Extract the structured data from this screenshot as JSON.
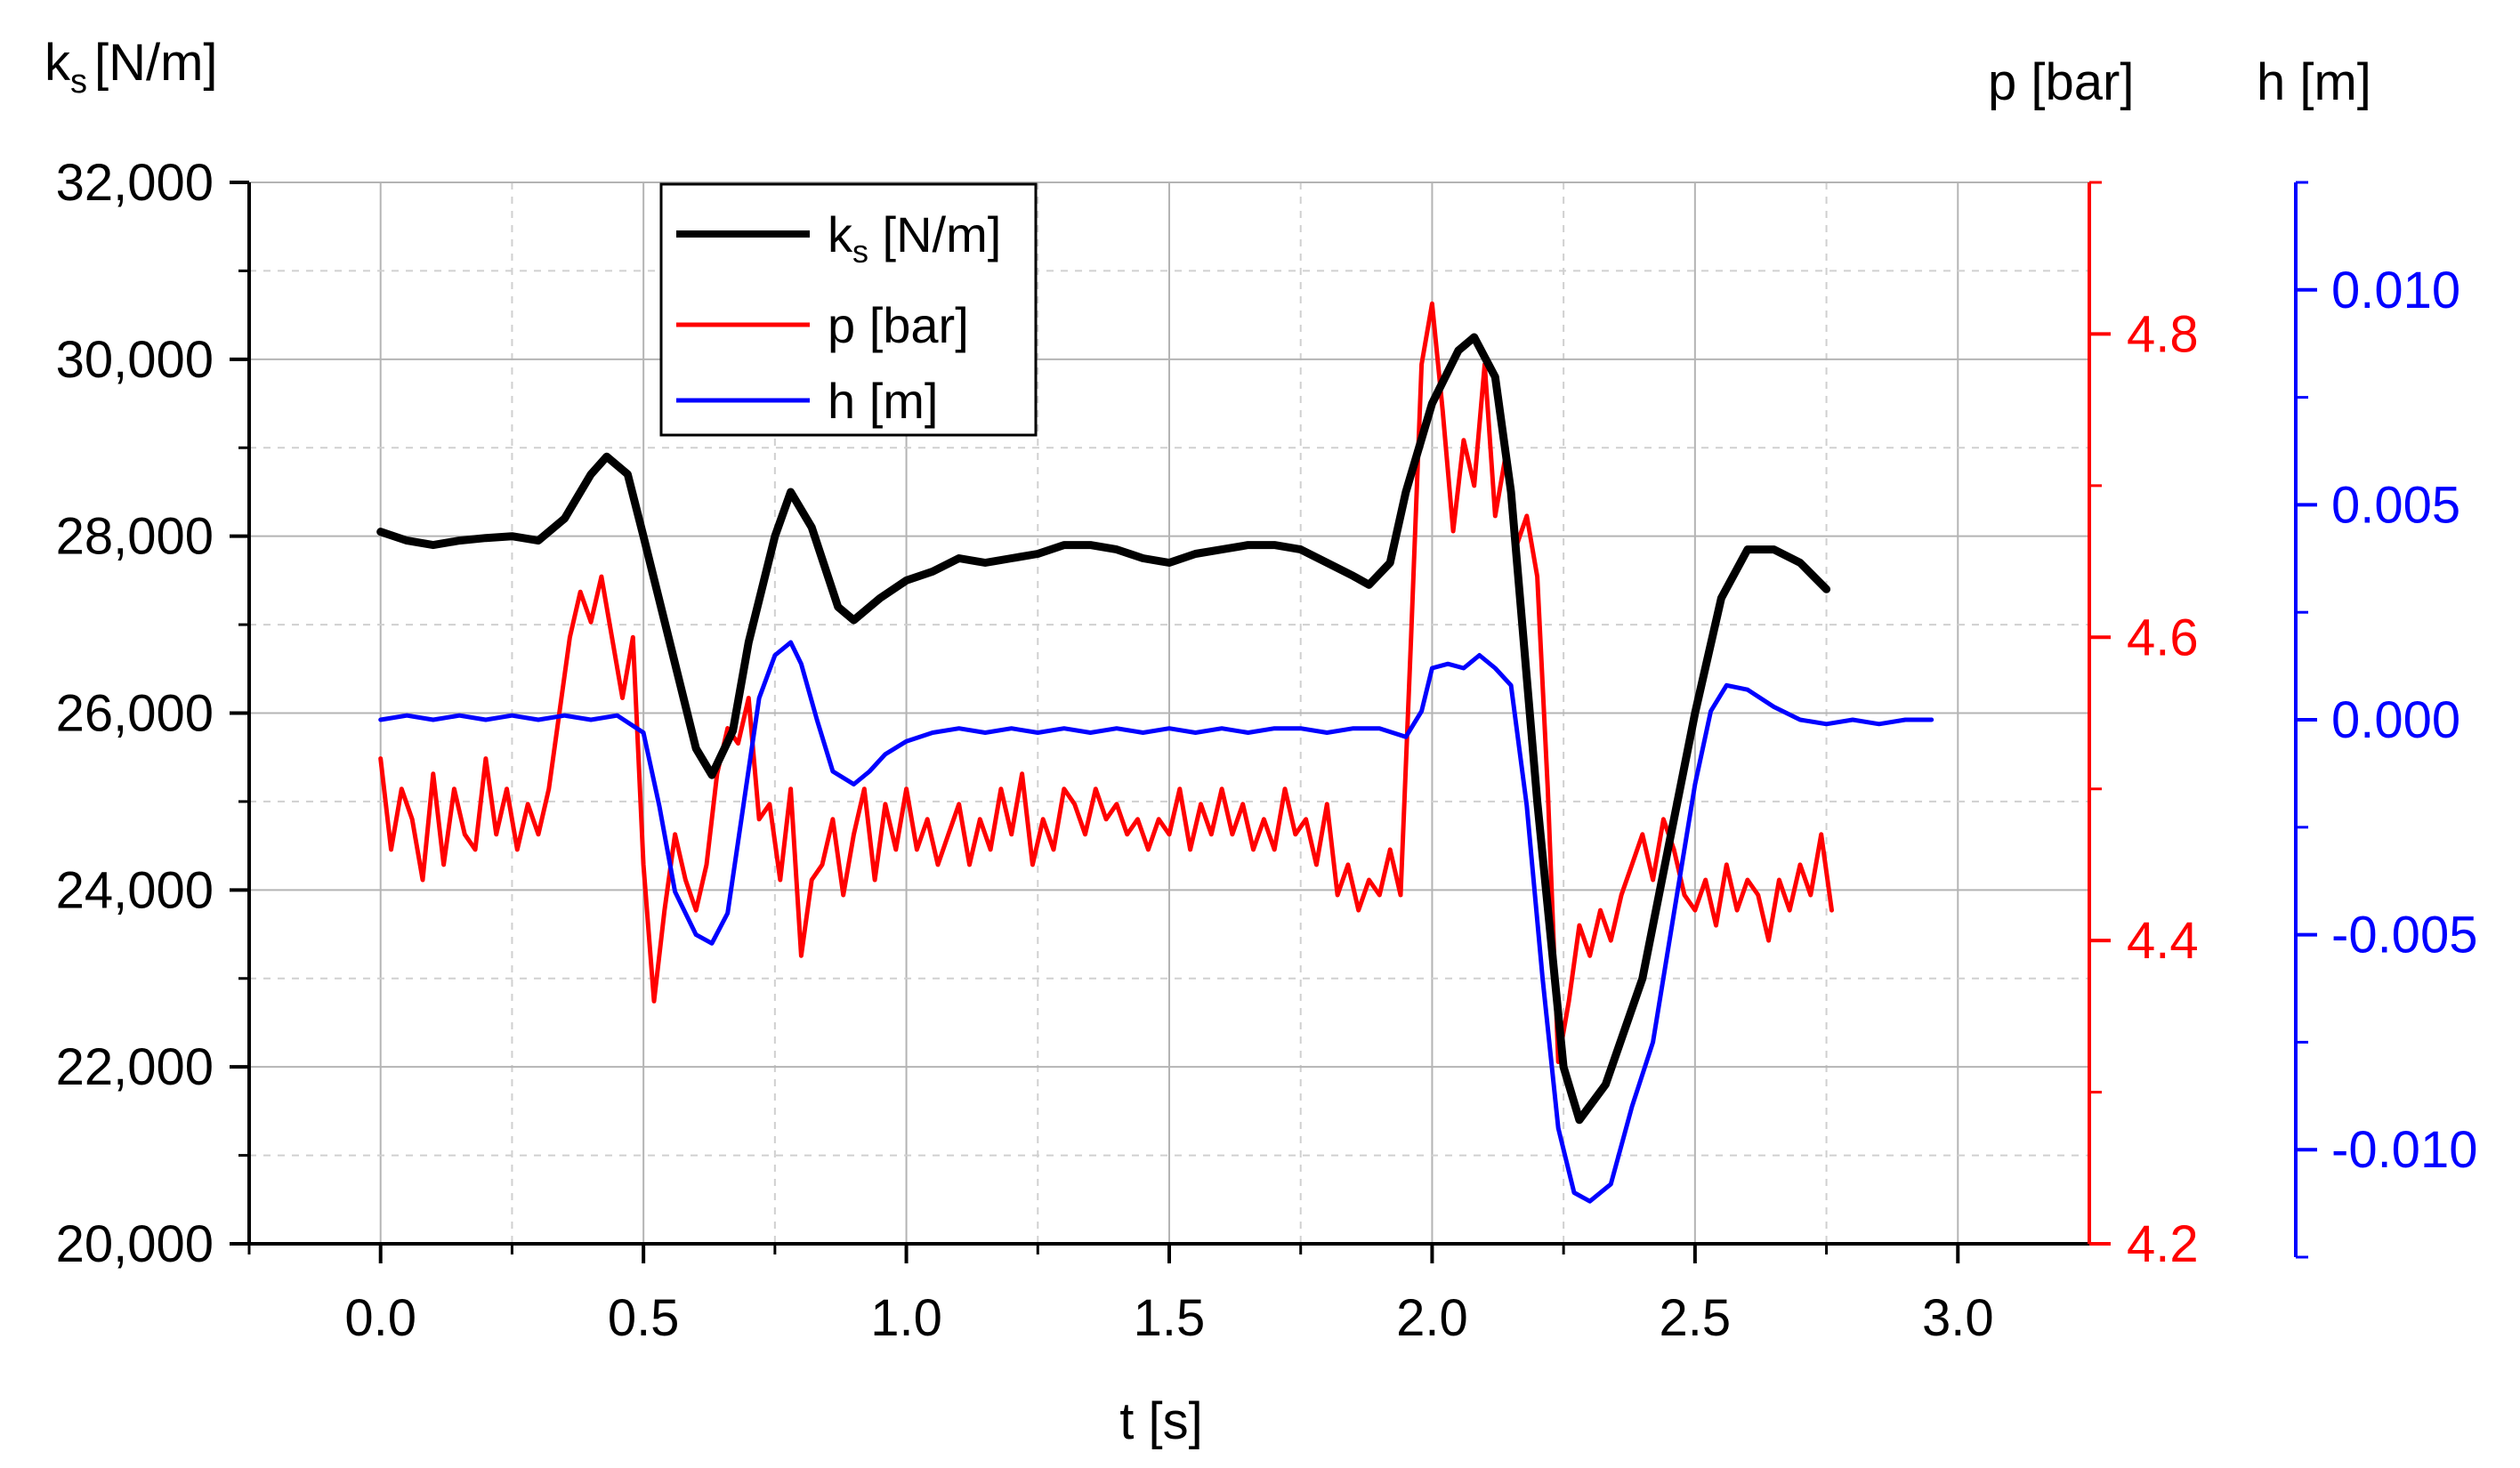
{
  "chart_data": {
    "type": "line",
    "title": "",
    "x_axis": {
      "label": "t [s]",
      "range": [
        -0.25,
        3.25
      ],
      "ticks": [
        0.0,
        0.5,
        1.0,
        1.5,
        2.0,
        2.5,
        3.0
      ],
      "tick_labels": [
        "0.0",
        "0.5",
        "1.0",
        "1.5",
        "2.0",
        "2.5",
        "3.0"
      ],
      "grid": true
    },
    "y_axes": {
      "left": {
        "label_main": "k",
        "label_sub": "s",
        "label_unit": "[N/m]",
        "range": [
          20000,
          32000
        ],
        "ticks": [
          20000,
          22000,
          24000,
          26000,
          28000,
          30000,
          32000
        ],
        "tick_labels": [
          "20,000",
          "22,000",
          "24,000",
          "26,000",
          "28,000",
          "30,000",
          "32,000"
        ],
        "color": "#000000"
      },
      "right_p": {
        "label": "p [bar]",
        "range": [
          4.2,
          4.9
        ],
        "ticks": [
          4.2,
          4.4,
          4.6,
          4.8
        ],
        "tick_labels": [
          "4.2",
          "4.4",
          "4.6",
          "4.8"
        ],
        "color": "#ff0000"
      },
      "right_h": {
        "label": "h [m]",
        "range": [
          -0.0125,
          0.0125
        ],
        "ticks": [
          -0.01,
          -0.005,
          0.0,
          0.005,
          0.01
        ],
        "tick_labels": [
          "-0.010",
          "-0.005",
          "0.000",
          "0.005",
          "0.010"
        ],
        "color": "#0000ff"
      }
    },
    "legend": {
      "placement": "top-left",
      "entries": [
        {
          "main": "k",
          "sub": "s",
          "suffix": " [N/m]",
          "color": "#000000"
        },
        {
          "main": "p [bar]",
          "sub": "",
          "suffix": "",
          "color": "#ff0000"
        },
        {
          "main": "h [m]",
          "sub": "",
          "suffix": "",
          "color": "#0000ff"
        }
      ]
    },
    "series": [
      {
        "name": "ks [N/m]",
        "axis": "left",
        "color": "#000000",
        "x": [
          0.0,
          0.05,
          0.1,
          0.15,
          0.2,
          0.25,
          0.3,
          0.35,
          0.4,
          0.43,
          0.47,
          0.5,
          0.55,
          0.6,
          0.63,
          0.67,
          0.7,
          0.75,
          0.78,
          0.82,
          0.87,
          0.9,
          0.95,
          1.0,
          1.05,
          1.1,
          1.15,
          1.2,
          1.25,
          1.3,
          1.35,
          1.4,
          1.45,
          1.5,
          1.55,
          1.6,
          1.65,
          1.7,
          1.75,
          1.8,
          1.85,
          1.88,
          1.92,
          1.95,
          2.0,
          2.05,
          2.08,
          2.12,
          2.15,
          2.2,
          2.25,
          2.28,
          2.33,
          2.4,
          2.45,
          2.5,
          2.55,
          2.6,
          2.65,
          2.7,
          2.75
        ],
        "values": [
          28050,
          27950,
          27900,
          27950,
          27980,
          28000,
          27950,
          28200,
          28700,
          28900,
          28700,
          28000,
          26800,
          25600,
          25300,
          25800,
          26800,
          28000,
          28500,
          28100,
          27200,
          27050,
          27300,
          27500,
          27600,
          27750,
          27700,
          27750,
          27800,
          27900,
          27900,
          27850,
          27750,
          27700,
          27800,
          27850,
          27900,
          27900,
          27850,
          27700,
          27550,
          27450,
          27700,
          28500,
          29500,
          30100,
          30250,
          29800,
          28500,
          25000,
          22000,
          21400,
          21800,
          23000,
          24500,
          26000,
          27300,
          27850,
          27850,
          27700,
          27400
        ]
      },
      {
        "name": "p [bar]",
        "axis": "right_p",
        "color": "#ff0000",
        "x": [
          0.0,
          0.02,
          0.04,
          0.06,
          0.08,
          0.1,
          0.12,
          0.14,
          0.16,
          0.18,
          0.2,
          0.22,
          0.24,
          0.26,
          0.28,
          0.3,
          0.32,
          0.34,
          0.36,
          0.38,
          0.4,
          0.42,
          0.44,
          0.46,
          0.48,
          0.5,
          0.52,
          0.54,
          0.56,
          0.58,
          0.6,
          0.62,
          0.64,
          0.66,
          0.68,
          0.7,
          0.72,
          0.74,
          0.76,
          0.78,
          0.8,
          0.82,
          0.84,
          0.86,
          0.88,
          0.9,
          0.92,
          0.94,
          0.96,
          0.98,
          1.0,
          1.02,
          1.04,
          1.06,
          1.08,
          1.1,
          1.12,
          1.14,
          1.16,
          1.18,
          1.2,
          1.22,
          1.24,
          1.26,
          1.28,
          1.3,
          1.32,
          1.34,
          1.36,
          1.38,
          1.4,
          1.42,
          1.44,
          1.46,
          1.48,
          1.5,
          1.52,
          1.54,
          1.56,
          1.58,
          1.6,
          1.62,
          1.64,
          1.66,
          1.68,
          1.7,
          1.72,
          1.74,
          1.76,
          1.78,
          1.8,
          1.82,
          1.84,
          1.86,
          1.88,
          1.9,
          1.92,
          1.94,
          1.96,
          1.98,
          2.0,
          2.02,
          2.04,
          2.06,
          2.08,
          2.1,
          2.12,
          2.14,
          2.16,
          2.18,
          2.2,
          2.22,
          2.24,
          2.26,
          2.28,
          2.3,
          2.32,
          2.34,
          2.36,
          2.38,
          2.4,
          2.42,
          2.44,
          2.46,
          2.48,
          2.5,
          2.52,
          2.54,
          2.56,
          2.58,
          2.6,
          2.62,
          2.64,
          2.66,
          2.68,
          2.7,
          2.72,
          2.74,
          2.76
        ],
        "values": [
          4.52,
          4.46,
          4.5,
          4.48,
          4.44,
          4.51,
          4.45,
          4.5,
          4.47,
          4.46,
          4.52,
          4.47,
          4.5,
          4.46,
          4.49,
          4.47,
          4.5,
          4.55,
          4.6,
          4.63,
          4.61,
          4.64,
          4.6,
          4.56,
          4.6,
          4.45,
          4.36,
          4.42,
          4.47,
          4.44,
          4.42,
          4.45,
          4.51,
          4.54,
          4.53,
          4.56,
          4.48,
          4.49,
          4.44,
          4.5,
          4.39,
          4.44,
          4.45,
          4.48,
          4.43,
          4.47,
          4.5,
          4.44,
          4.49,
          4.46,
          4.5,
          4.46,
          4.48,
          4.45,
          4.47,
          4.49,
          4.45,
          4.48,
          4.46,
          4.5,
          4.47,
          4.51,
          4.45,
          4.48,
          4.46,
          4.5,
          4.49,
          4.47,
          4.5,
          4.48,
          4.49,
          4.47,
          4.48,
          4.46,
          4.48,
          4.47,
          4.5,
          4.46,
          4.49,
          4.47,
          4.5,
          4.47,
          4.49,
          4.46,
          4.48,
          4.46,
          4.5,
          4.47,
          4.48,
          4.45,
          4.49,
          4.43,
          4.45,
          4.42,
          4.44,
          4.43,
          4.46,
          4.43,
          4.6,
          4.78,
          4.82,
          4.75,
          4.67,
          4.73,
          4.7,
          4.78,
          4.68,
          4.72,
          4.66,
          4.68,
          4.64,
          4.5,
          4.32,
          4.36,
          4.41,
          4.39,
          4.42,
          4.4,
          4.43,
          4.45,
          4.47,
          4.44,
          4.48,
          4.46,
          4.43,
          4.42,
          4.44,
          4.41,
          4.45,
          4.42,
          4.44,
          4.43,
          4.4,
          4.44,
          4.42,
          4.45,
          4.43,
          4.47,
          4.42
        ]
      },
      {
        "name": "h [m]",
        "axis": "right_h",
        "color": "#0000ff",
        "x": [
          0.0,
          0.05,
          0.1,
          0.15,
          0.2,
          0.25,
          0.3,
          0.35,
          0.4,
          0.45,
          0.5,
          0.53,
          0.56,
          0.6,
          0.63,
          0.66,
          0.69,
          0.72,
          0.75,
          0.78,
          0.8,
          0.83,
          0.86,
          0.9,
          0.93,
          0.96,
          1.0,
          1.05,
          1.1,
          1.15,
          1.2,
          1.25,
          1.3,
          1.35,
          1.4,
          1.45,
          1.5,
          1.55,
          1.6,
          1.65,
          1.7,
          1.75,
          1.8,
          1.85,
          1.9,
          1.95,
          1.98,
          2.0,
          2.03,
          2.06,
          2.09,
          2.12,
          2.15,
          2.18,
          2.21,
          2.24,
          2.27,
          2.3,
          2.34,
          2.38,
          2.42,
          2.46,
          2.5,
          2.53,
          2.56,
          2.6,
          2.65,
          2.7,
          2.75,
          2.8,
          2.85,
          2.9,
          2.95
        ],
        "values": [
          0.0,
          0.0001,
          0.0,
          0.0001,
          0.0,
          0.0001,
          0.0,
          0.0001,
          0.0,
          0.0001,
          -0.0003,
          -0.002,
          -0.004,
          -0.005,
          -0.0052,
          -0.0045,
          -0.002,
          0.0005,
          0.0015,
          0.0018,
          0.0013,
          0.0,
          -0.0012,
          -0.0015,
          -0.0012,
          -0.0008,
          -0.0005,
          -0.0003,
          -0.0002,
          -0.0003,
          -0.0002,
          -0.0003,
          -0.0002,
          -0.0003,
          -0.0002,
          -0.0003,
          -0.0002,
          -0.0003,
          -0.0002,
          -0.0003,
          -0.0002,
          -0.0002,
          -0.0003,
          -0.0002,
          -0.0002,
          -0.0004,
          0.0002,
          0.0012,
          0.0013,
          0.0012,
          0.0015,
          0.0012,
          0.0008,
          -0.002,
          -0.006,
          -0.0095,
          -0.011,
          -0.0112,
          -0.0108,
          -0.009,
          -0.0075,
          -0.0045,
          -0.0015,
          0.0002,
          0.0008,
          0.0007,
          0.0003,
          0.0,
          -0.0001,
          0.0,
          -0.0001,
          0.0,
          0.0
        ]
      }
    ]
  }
}
